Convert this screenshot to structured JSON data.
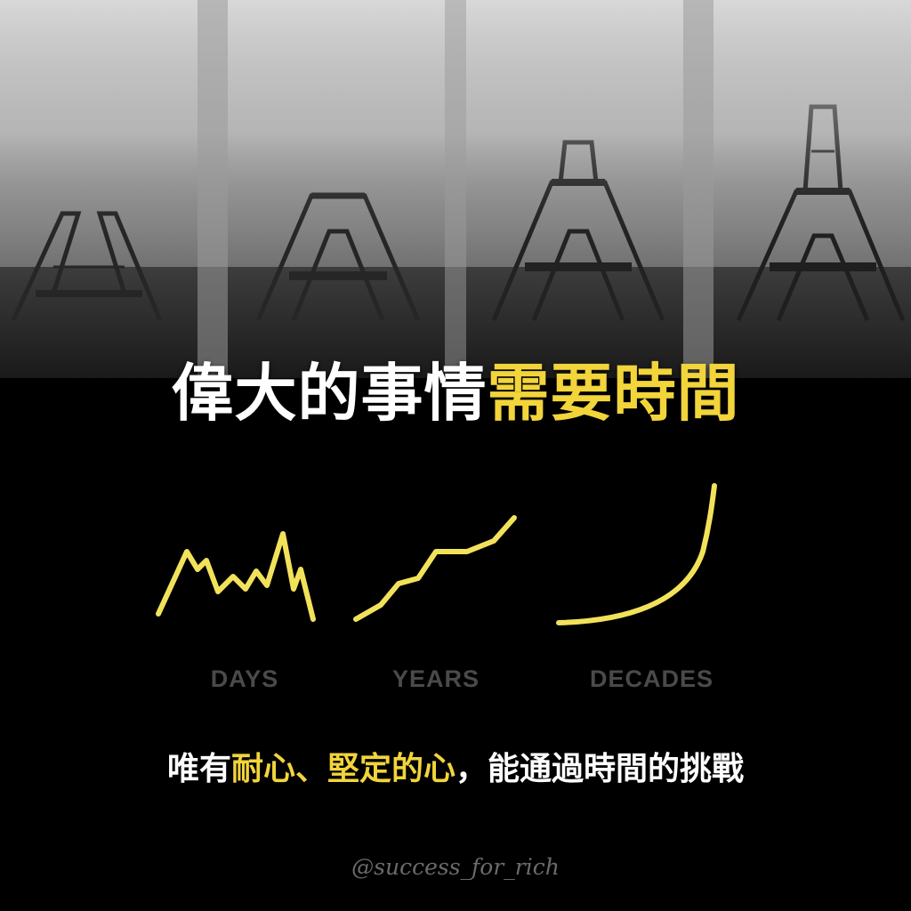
{
  "headline": {
    "part1": "偉大的事情",
    "part2": "需要時間"
  },
  "graphs": {
    "stroke_color": "#f2e25a",
    "labels": [
      "DAYS",
      "YEARS",
      "DECADES"
    ]
  },
  "subtitle": {
    "part1": "唯有",
    "part2": "耐心、堅定的心",
    "part3": "，能通過時間的挑戰"
  },
  "watermark": "@success_for_rich",
  "colors": {
    "accent": "#f2d43b",
    "background": "#000000",
    "label_gray": "#4a4a4a"
  }
}
